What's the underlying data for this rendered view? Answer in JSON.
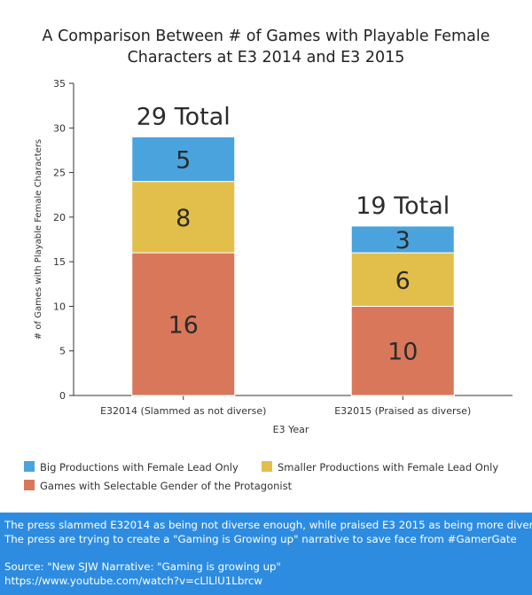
{
  "chart_data": {
    "type": "bar",
    "stacked": true,
    "title_lines": [
      "A Comparison Between # of Games with Playable Female",
      "Characters at E3 2014 and E3 2015"
    ],
    "xlabel": "E3 Year",
    "ylabel": "# of Games with Playable Female Characters",
    "ylim": [
      0,
      35
    ],
    "yticks": [
      0,
      5,
      10,
      15,
      20,
      25,
      30,
      35
    ],
    "categories": [
      "E32014 (Slammed as not diverse)",
      "E32015 (Praised as diverse)"
    ],
    "series": [
      {
        "name": "Games with Selectable Gender of the Protagonist",
        "color": "#d9775a",
        "values": [
          16,
          10
        ]
      },
      {
        "name": "Smaller Productions with Female Lead Only",
        "color": "#e2bf4a",
        "values": [
          8,
          6
        ]
      },
      {
        "name": "Big Productions with Female Lead Only",
        "color": "#4aa3dc",
        "values": [
          5,
          3
        ]
      }
    ],
    "total_labels": [
      "29 Total",
      "19 Total"
    ],
    "grid": false,
    "legend_position": "bottom"
  },
  "footer": {
    "line1": "The press slammed E32014 as being not diverse enough, while praised E3 2015 as being more diverse.",
    "line2": "The press are trying to create a \"Gaming is Growing up\" narrative to save face from #GamerGate",
    "line3": "Source: \"New SJW Narrative: \"Gaming is growing up\"",
    "line4": "https://www.youtube.com/watch?v=cLlLlU1Lbrcw"
  }
}
